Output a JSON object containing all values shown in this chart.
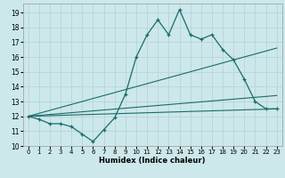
{
  "xlabel": "Humidex (Indice chaleur)",
  "ylabel": "",
  "bg_color": "#cce8ea",
  "grid_color": "#b8d4d6",
  "line_color": "#1a6b6b",
  "xlim": [
    -0.5,
    23.5
  ],
  "ylim": [
    10,
    19.6
  ],
  "yticks": [
    10,
    11,
    12,
    13,
    14,
    15,
    16,
    17,
    18,
    19
  ],
  "xticks": [
    0,
    1,
    2,
    3,
    4,
    5,
    6,
    7,
    8,
    9,
    10,
    11,
    12,
    13,
    14,
    15,
    16,
    17,
    18,
    19,
    20,
    21,
    22,
    23
  ],
  "series1_x": [
    0,
    1,
    2,
    3,
    4,
    5,
    6,
    7,
    8,
    9,
    10,
    11,
    12,
    13,
    14,
    15,
    16,
    17,
    18,
    19,
    20,
    21,
    22,
    23
  ],
  "series1_y": [
    12.0,
    11.8,
    11.5,
    11.5,
    11.3,
    10.8,
    10.3,
    11.1,
    11.9,
    13.5,
    16.0,
    17.5,
    18.5,
    17.5,
    19.2,
    17.5,
    17.2,
    17.5,
    16.5,
    15.8,
    14.5,
    13.0,
    12.5,
    12.5
  ],
  "series2_x": [
    0,
    23
  ],
  "series2_y": [
    12.0,
    16.6
  ],
  "series3_x": [
    0,
    23
  ],
  "series3_y": [
    12.0,
    13.4
  ],
  "series4_x": [
    0,
    23
  ],
  "series4_y": [
    12.0,
    12.5
  ]
}
